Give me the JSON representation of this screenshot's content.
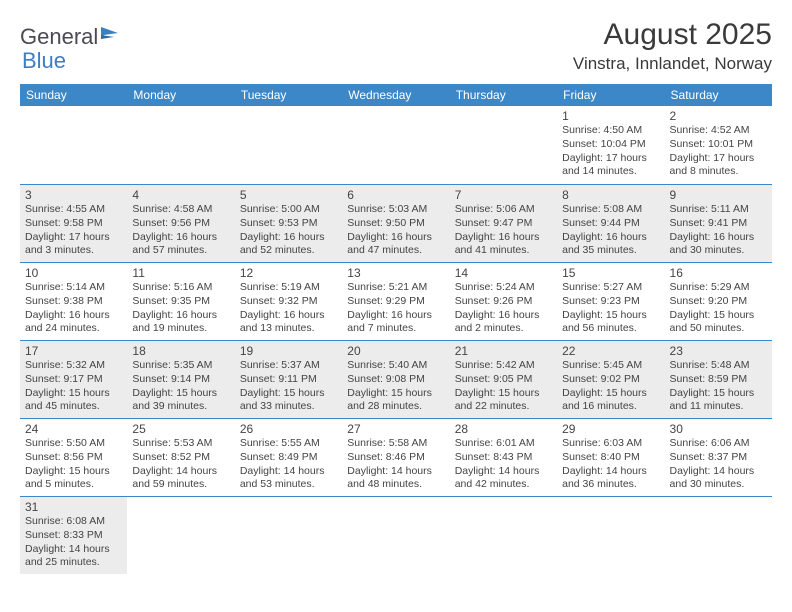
{
  "logo": {
    "text1": "General",
    "text2": "Blue"
  },
  "title": "August 2025",
  "location": "Vinstra, Innlandet, Norway",
  "colors": {
    "header_bg": "#3b87c8",
    "header_fg": "#ffffff",
    "shade_bg": "#ececec",
    "rule": "#3b87c8",
    "logo_blue": "#3b7fc4"
  },
  "weekdays": [
    "Sunday",
    "Monday",
    "Tuesday",
    "Wednesday",
    "Thursday",
    "Friday",
    "Saturday"
  ],
  "weeks": [
    [
      null,
      null,
      null,
      null,
      null,
      {
        "n": "1",
        "sr": "4:50 AM",
        "ss": "10:04 PM",
        "dl": "17 hours and 14 minutes."
      },
      {
        "n": "2",
        "sr": "4:52 AM",
        "ss": "10:01 PM",
        "dl": "17 hours and 8 minutes."
      }
    ],
    [
      {
        "n": "3",
        "sr": "4:55 AM",
        "ss": "9:58 PM",
        "dl": "17 hours and 3 minutes."
      },
      {
        "n": "4",
        "sr": "4:58 AM",
        "ss": "9:56 PM",
        "dl": "16 hours and 57 minutes."
      },
      {
        "n": "5",
        "sr": "5:00 AM",
        "ss": "9:53 PM",
        "dl": "16 hours and 52 minutes."
      },
      {
        "n": "6",
        "sr": "5:03 AM",
        "ss": "9:50 PM",
        "dl": "16 hours and 47 minutes."
      },
      {
        "n": "7",
        "sr": "5:06 AM",
        "ss": "9:47 PM",
        "dl": "16 hours and 41 minutes."
      },
      {
        "n": "8",
        "sr": "5:08 AM",
        "ss": "9:44 PM",
        "dl": "16 hours and 35 minutes."
      },
      {
        "n": "9",
        "sr": "5:11 AM",
        "ss": "9:41 PM",
        "dl": "16 hours and 30 minutes."
      }
    ],
    [
      {
        "n": "10",
        "sr": "5:14 AM",
        "ss": "9:38 PM",
        "dl": "16 hours and 24 minutes."
      },
      {
        "n": "11",
        "sr": "5:16 AM",
        "ss": "9:35 PM",
        "dl": "16 hours and 19 minutes."
      },
      {
        "n": "12",
        "sr": "5:19 AM",
        "ss": "9:32 PM",
        "dl": "16 hours and 13 minutes."
      },
      {
        "n": "13",
        "sr": "5:21 AM",
        "ss": "9:29 PM",
        "dl": "16 hours and 7 minutes."
      },
      {
        "n": "14",
        "sr": "5:24 AM",
        "ss": "9:26 PM",
        "dl": "16 hours and 2 minutes."
      },
      {
        "n": "15",
        "sr": "5:27 AM",
        "ss": "9:23 PM",
        "dl": "15 hours and 56 minutes."
      },
      {
        "n": "16",
        "sr": "5:29 AM",
        "ss": "9:20 PM",
        "dl": "15 hours and 50 minutes."
      }
    ],
    [
      {
        "n": "17",
        "sr": "5:32 AM",
        "ss": "9:17 PM",
        "dl": "15 hours and 45 minutes."
      },
      {
        "n": "18",
        "sr": "5:35 AM",
        "ss": "9:14 PM",
        "dl": "15 hours and 39 minutes."
      },
      {
        "n": "19",
        "sr": "5:37 AM",
        "ss": "9:11 PM",
        "dl": "15 hours and 33 minutes."
      },
      {
        "n": "20",
        "sr": "5:40 AM",
        "ss": "9:08 PM",
        "dl": "15 hours and 28 minutes."
      },
      {
        "n": "21",
        "sr": "5:42 AM",
        "ss": "9:05 PM",
        "dl": "15 hours and 22 minutes."
      },
      {
        "n": "22",
        "sr": "5:45 AM",
        "ss": "9:02 PM",
        "dl": "15 hours and 16 minutes."
      },
      {
        "n": "23",
        "sr": "5:48 AM",
        "ss": "8:59 PM",
        "dl": "15 hours and 11 minutes."
      }
    ],
    [
      {
        "n": "24",
        "sr": "5:50 AM",
        "ss": "8:56 PM",
        "dl": "15 hours and 5 minutes."
      },
      {
        "n": "25",
        "sr": "5:53 AM",
        "ss": "8:52 PM",
        "dl": "14 hours and 59 minutes."
      },
      {
        "n": "26",
        "sr": "5:55 AM",
        "ss": "8:49 PM",
        "dl": "14 hours and 53 minutes."
      },
      {
        "n": "27",
        "sr": "5:58 AM",
        "ss": "8:46 PM",
        "dl": "14 hours and 48 minutes."
      },
      {
        "n": "28",
        "sr": "6:01 AM",
        "ss": "8:43 PM",
        "dl": "14 hours and 42 minutes."
      },
      {
        "n": "29",
        "sr": "6:03 AM",
        "ss": "8:40 PM",
        "dl": "14 hours and 36 minutes."
      },
      {
        "n": "30",
        "sr": "6:06 AM",
        "ss": "8:37 PM",
        "dl": "14 hours and 30 minutes."
      }
    ],
    [
      {
        "n": "31",
        "sr": "6:08 AM",
        "ss": "8:33 PM",
        "dl": "14 hours and 25 minutes."
      },
      null,
      null,
      null,
      null,
      null,
      null
    ]
  ],
  "labels": {
    "sunrise": "Sunrise: ",
    "sunset": "Sunset: ",
    "daylight": "Daylight: "
  }
}
